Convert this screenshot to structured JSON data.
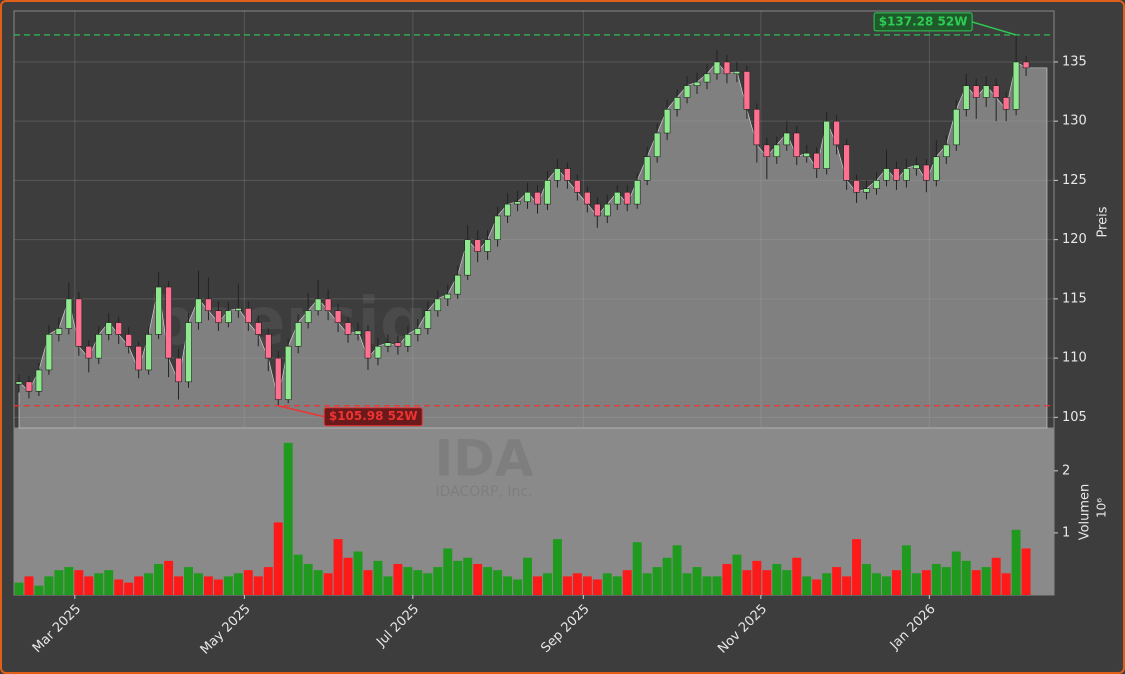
{
  "chart_data": {
    "type": "candlestick",
    "ylabel": "Preis",
    "watermark": "boersignale.trade",
    "ticker": "IDA",
    "company": "IDACORP, Inc.",
    "grid": true,
    "area_color": "#808080",
    "candle_colors": {
      "up": "#8ee88e",
      "down": "#ff6f8f"
    },
    "xlim": [
      -0.5,
      103.8
    ],
    "xticks": [
      {
        "value": 5.6,
        "label": "Mar 2025"
      },
      {
        "value": 22.6,
        "label": "May 2025"
      },
      {
        "value": 39.5,
        "label": "Jul 2025"
      },
      {
        "value": 56.6,
        "label": "Sep 2025"
      },
      {
        "value": 74.4,
        "label": "Nov 2025"
      },
      {
        "value": 91.3,
        "label": "Jan 2026"
      }
    ],
    "ylim": [
      104.1,
      139.3
    ],
    "yticks": [
      105,
      110,
      115,
      120,
      125,
      130,
      135
    ],
    "open": [
      107.8,
      108,
      107.2,
      109,
      112,
      112.5,
      115,
      111,
      110,
      112,
      113,
      112,
      111,
      109,
      112,
      116,
      110,
      108,
      113,
      115,
      114,
      113,
      114,
      114.2,
      113,
      112,
      110,
      106.5,
      111,
      113,
      114,
      115,
      114,
      113,
      112,
      112.3,
      110,
      111,
      111.3,
      111,
      112,
      112.5,
      114,
      115,
      115.4,
      117,
      120,
      119,
      120,
      122,
      123,
      123.2,
      124,
      123,
      125,
      126,
      125,
      124,
      123,
      122,
      123,
      124,
      123,
      125,
      127,
      129,
      131,
      132,
      133,
      133.3,
      134,
      135,
      134,
      134.2,
      131,
      128,
      127,
      128,
      129,
      127,
      127.3,
      126,
      130,
      128,
      125,
      124,
      124.3,
      125,
      126,
      125,
      126,
      126.3,
      125,
      127,
      128,
      131,
      133,
      132,
      133,
      132,
      131,
      135
    ],
    "high": [
      108.6,
      108.5,
      109.6,
      112.8,
      113.4,
      116.4,
      115.6,
      111.5,
      112.7,
      113.8,
      113.5,
      112.6,
      111.4,
      112.6,
      117.3,
      116.5,
      110.8,
      113.8,
      117.4,
      116.8,
      114.8,
      114.7,
      116.3,
      114.8,
      113.6,
      112.5,
      110.6,
      111.6,
      113.7,
      115.5,
      116.6,
      115.8,
      114.6,
      113.4,
      113,
      112.8,
      111.7,
      112,
      111.9,
      112.7,
      113.3,
      114.8,
      115.7,
      116.2,
      117.8,
      121.2,
      120.8,
      120.8,
      122.8,
      123.9,
      124.1,
      124.8,
      124.6,
      125.8,
      126.8,
      126.5,
      125.5,
      124.5,
      123.6,
      123.8,
      124.6,
      124.6,
      125.6,
      127.8,
      129.8,
      131.8,
      132.7,
      133.8,
      134.1,
      134.8,
      136,
      135.6,
      135,
      134.7,
      131.5,
      128.6,
      128.7,
      130,
      129.6,
      128,
      127.8,
      130.8,
      130.5,
      128.5,
      125.5,
      125,
      125.7,
      127.6,
      126.6,
      126.8,
      127,
      126.8,
      128.4,
      128.8,
      131.8,
      134,
      133.6,
      133.8,
      133.6,
      132.5,
      137.28,
      135.5
    ],
    "low": [
      107.1,
      106.6,
      106.8,
      108.6,
      111.4,
      112,
      110.2,
      108.8,
      109.5,
      111.5,
      111.2,
      110.4,
      108.3,
      108.6,
      111.6,
      108.4,
      106.5,
      107.5,
      112.4,
      113.2,
      112.3,
      112.6,
      113.4,
      112.3,
      111,
      108.9,
      105.98,
      106.2,
      110.4,
      112.5,
      113.6,
      113.2,
      112.2,
      111.3,
      111.5,
      109,
      109.4,
      110.5,
      110.3,
      110.5,
      111.4,
      112,
      113.5,
      114.4,
      115,
      116.6,
      118.1,
      118.3,
      119.4,
      121.4,
      122.4,
      122.6,
      122.2,
      122.5,
      124.4,
      124.3,
      123.3,
      122.3,
      121,
      121.4,
      122.5,
      122.4,
      122.6,
      124.6,
      126.5,
      128.4,
      130.4,
      131.5,
      132.3,
      132.7,
      133.5,
      133.2,
      133.3,
      130.2,
      126.5,
      125.1,
      126.4,
      127.5,
      126.3,
      126.5,
      125.2,
      125.5,
      127.2,
      124.2,
      123.1,
      123.4,
      123.8,
      124.5,
      124.2,
      124.4,
      125.4,
      124,
      124.5,
      126.4,
      127.5,
      130.4,
      130.2,
      131.2,
      130,
      130,
      130.5,
      133.8
    ],
    "close": [
      108,
      107.2,
      109,
      112,
      112.5,
      115,
      111,
      110,
      112,
      113,
      112,
      111,
      109,
      112,
      116,
      110,
      108,
      113,
      115,
      114,
      113,
      114,
      114.2,
      113,
      112,
      110,
      106.5,
      111,
      113,
      114,
      115,
      114,
      113,
      112,
      112.3,
      110,
      111,
      111.3,
      111,
      112,
      112.5,
      114,
      115,
      115.4,
      117,
      120,
      119,
      120,
      122,
      123,
      123.2,
      124,
      123,
      125,
      126,
      125,
      124,
      123,
      122,
      123,
      124,
      123,
      125,
      127,
      129,
      131,
      132,
      133,
      133.3,
      134,
      135,
      134,
      134.2,
      131,
      128,
      127,
      128,
      129,
      127,
      127.3,
      126,
      130,
      128,
      125,
      124,
      124.3,
      125,
      126,
      125,
      126,
      126.3,
      125,
      127,
      128,
      131,
      133,
      132,
      133,
      132,
      131,
      135,
      134.5
    ],
    "annotations": [
      {
        "value": 137.28,
        "label": "$137.28 52W",
        "color": "#2ecc55",
        "box": "#1e5a2a"
      },
      {
        "value": 105.98,
        "label": "$105.98 52W",
        "color": "#ee3333",
        "box": "#6a1a1a"
      }
    ],
    "volume": {
      "ylabel": "Volumen",
      "offset_label": "10⁶",
      "ylim": [
        0,
        2.69
      ],
      "yticks": [
        1,
        2
      ],
      "colors": {
        "up": "#1f9a1f",
        "down": "#ff1a1a"
      },
      "values": [
        0.2,
        0.3,
        0.15,
        0.3,
        0.4,
        0.45,
        0.4,
        0.3,
        0.35,
        0.4,
        0.25,
        0.2,
        0.3,
        0.35,
        0.5,
        0.55,
        0.3,
        0.45,
        0.35,
        0.3,
        0.25,
        0.3,
        0.35,
        0.4,
        0.3,
        0.45,
        1.17,
        2.45,
        0.65,
        0.5,
        0.4,
        0.35,
        0.9,
        0.6,
        0.7,
        0.4,
        0.55,
        0.3,
        0.5,
        0.45,
        0.4,
        0.35,
        0.45,
        0.75,
        0.55,
        0.6,
        0.5,
        0.45,
        0.4,
        0.3,
        0.25,
        0.6,
        0.3,
        0.35,
        0.9,
        0.3,
        0.35,
        0.3,
        0.25,
        0.35,
        0.3,
        0.4,
        0.85,
        0.35,
        0.45,
        0.6,
        0.8,
        0.35,
        0.45,
        0.3,
        0.3,
        0.5,
        0.65,
        0.4,
        0.55,
        0.4,
        0.5,
        0.4,
        0.6,
        0.3,
        0.25,
        0.35,
        0.45,
        0.3,
        0.9,
        0.5,
        0.35,
        0.3,
        0.4,
        0.8,
        0.35,
        0.4,
        0.5,
        0.45,
        0.7,
        0.55,
        0.4,
        0.45,
        0.6,
        0.35,
        1.05,
        0.75
      ]
    }
  }
}
